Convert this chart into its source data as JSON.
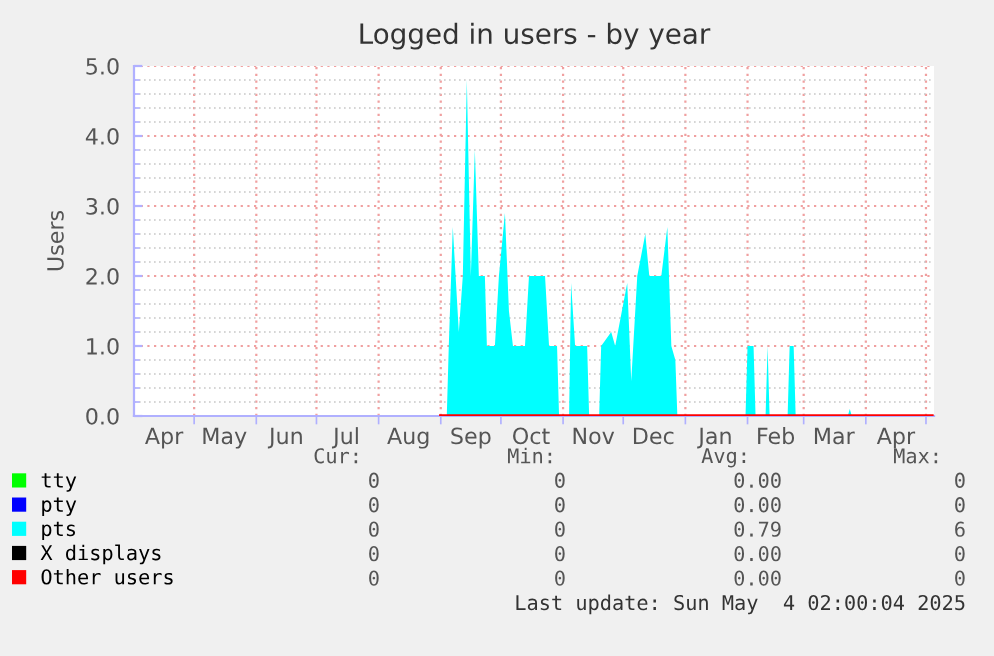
{
  "chart_data": {
    "type": "area",
    "title": "Logged in users - by year",
    "ylabel": "Users",
    "xlim": [
      "2024-04-01",
      "2025-05-05"
    ],
    "xticks": [
      {
        "value": "2024-04-16",
        "label": "Apr"
      },
      {
        "value": "2024-05-01",
        "label": null
      },
      {
        "value": "2024-05-16",
        "label": "May"
      },
      {
        "value": "2024-06-01",
        "label": null
      },
      {
        "value": "2024-06-16",
        "label": "Jun"
      },
      {
        "value": "2024-07-01",
        "label": null
      },
      {
        "value": "2024-07-16",
        "label": "Jul"
      },
      {
        "value": "2024-08-01",
        "label": null
      },
      {
        "value": "2024-08-16",
        "label": "Aug"
      },
      {
        "value": "2024-09-01",
        "label": null
      },
      {
        "value": "2024-09-16",
        "label": "Sep"
      },
      {
        "value": "2024-10-01",
        "label": null
      },
      {
        "value": "2024-10-16",
        "label": "Oct"
      },
      {
        "value": "2024-11-01",
        "label": null
      },
      {
        "value": "2024-11-16",
        "label": "Nov"
      },
      {
        "value": "2024-12-01",
        "label": null
      },
      {
        "value": "2024-12-16",
        "label": "Dec"
      },
      {
        "value": "2025-01-01",
        "label": null
      },
      {
        "value": "2025-01-16",
        "label": "Jan"
      },
      {
        "value": "2025-02-01",
        "label": null
      },
      {
        "value": "2025-02-15",
        "label": "Feb"
      },
      {
        "value": "2025-03-01",
        "label": null
      },
      {
        "value": "2025-03-16",
        "label": "Mar"
      },
      {
        "value": "2025-04-01",
        "label": null
      },
      {
        "value": "2025-04-16",
        "label": "Apr"
      },
      {
        "value": "2025-05-01",
        "label": null
      }
    ],
    "ylim": [
      0,
      5
    ],
    "yticks": [
      {
        "value": 0,
        "label": "0.0"
      },
      {
        "value": 0.2,
        "label": null
      },
      {
        "value": 0.4,
        "label": null
      },
      {
        "value": 0.6,
        "label": null
      },
      {
        "value": 0.8,
        "label": null
      },
      {
        "value": 1,
        "label": "1.0"
      },
      {
        "value": 1.2,
        "label": null
      },
      {
        "value": 1.4,
        "label": null
      },
      {
        "value": 1.6,
        "label": null
      },
      {
        "value": 1.8,
        "label": null
      },
      {
        "value": 2,
        "label": "2.0"
      },
      {
        "value": 2.2,
        "label": null
      },
      {
        "value": 2.4,
        "label": null
      },
      {
        "value": 2.6,
        "label": null
      },
      {
        "value": 2.8,
        "label": null
      },
      {
        "value": 3,
        "label": "3.0"
      },
      {
        "value": 3.2,
        "label": null
      },
      {
        "value": 3.4,
        "label": null
      },
      {
        "value": 3.6,
        "label": null
      },
      {
        "value": 3.8,
        "label": null
      },
      {
        "value": 4,
        "label": "4.0"
      },
      {
        "value": 4.2,
        "label": null
      },
      {
        "value": 4.4,
        "label": null
      },
      {
        "value": 4.6,
        "label": null
      },
      {
        "value": 4.8,
        "label": null
      },
      {
        "value": 5,
        "label": "5.0"
      }
    ],
    "grid": true,
    "legend": "bottom left",
    "series": [
      {
        "name": "tty",
        "type": "line",
        "color": "#00ff00"
      },
      {
        "name": "pty",
        "type": "line",
        "color": "#0000ff"
      },
      {
        "name": "pts",
        "type": "area",
        "color": "#00ffff",
        "x": [
          "2024-09-01",
          "2024-09-04",
          "2024-09-05",
          "2024-09-07",
          "2024-09-10",
          "2024-09-12",
          "2024-09-14",
          "2024-09-16",
          "2024-09-18",
          "2024-09-20",
          "2024-09-23",
          "2024-09-24",
          "2024-09-28",
          "2024-09-30",
          "2024-10-03",
          "2024-10-05",
          "2024-10-07",
          "2024-10-13",
          "2024-10-15",
          "2024-10-23",
          "2024-10-25",
          "2024-10-29",
          "2024-10-30",
          "2024-11-04",
          "2024-11-05",
          "2024-11-07",
          "2024-11-13",
          "2024-11-14",
          "2024-11-19",
          "2024-11-20",
          "2024-11-25",
          "2024-11-27",
          "2024-12-03",
          "2024-12-05",
          "2024-12-08",
          "2024-12-12",
          "2024-12-14",
          "2024-12-20",
          "2024-12-23",
          "2024-12-25",
          "2024-12-27",
          "2024-12-28",
          "2025-01-31",
          "2025-02-01",
          "2025-02-04",
          "2025-02-05",
          "2025-02-10",
          "2025-02-11",
          "2025-02-12",
          "2025-02-21",
          "2025-02-22",
          "2025-02-24",
          "2025-02-25",
          "2025-03-23",
          "2025-03-24",
          "2025-03-25",
          "2025-05-04"
        ],
        "values": [
          0,
          0,
          1.0,
          2.7,
          1.2,
          2.0,
          4.8,
          2.0,
          3.8,
          2.0,
          2.0,
          1.0,
          1.0,
          2.0,
          2.9,
          1.5,
          1.0,
          1.0,
          2.0,
          2.0,
          1.0,
          1.0,
          0,
          0,
          1.9,
          1.0,
          1.0,
          0,
          0,
          1.0,
          1.2,
          1.0,
          1.9,
          0.5,
          2.0,
          2.6,
          2.0,
          2.0,
          2.7,
          1.0,
          0.8,
          0,
          0,
          1.0,
          1.0,
          0,
          0,
          1.0,
          0,
          0,
          1.0,
          1.0,
          0,
          0,
          0.1,
          0,
          0
        ]
      },
      {
        "name": "X displays",
        "type": "line",
        "color": "#000000"
      },
      {
        "name": "Other users",
        "type": "line",
        "color": "#ff0000",
        "x": [
          "2024-09-01",
          "2025-05-04"
        ],
        "values": [
          0,
          0
        ]
      }
    ],
    "annotations": [
      "Cur:",
      "Min:",
      "Avg:",
      "Max:",
      "0",
      "0",
      "0.00",
      "0",
      "0",
      "0",
      "0.00",
      "0",
      "0",
      "0",
      "0.79",
      "6",
      "0",
      "0",
      "0.00",
      "0",
      "0",
      "0",
      "0.00",
      "0",
      "Last update: Sun May  4 02:00:04 2025"
    ]
  }
}
